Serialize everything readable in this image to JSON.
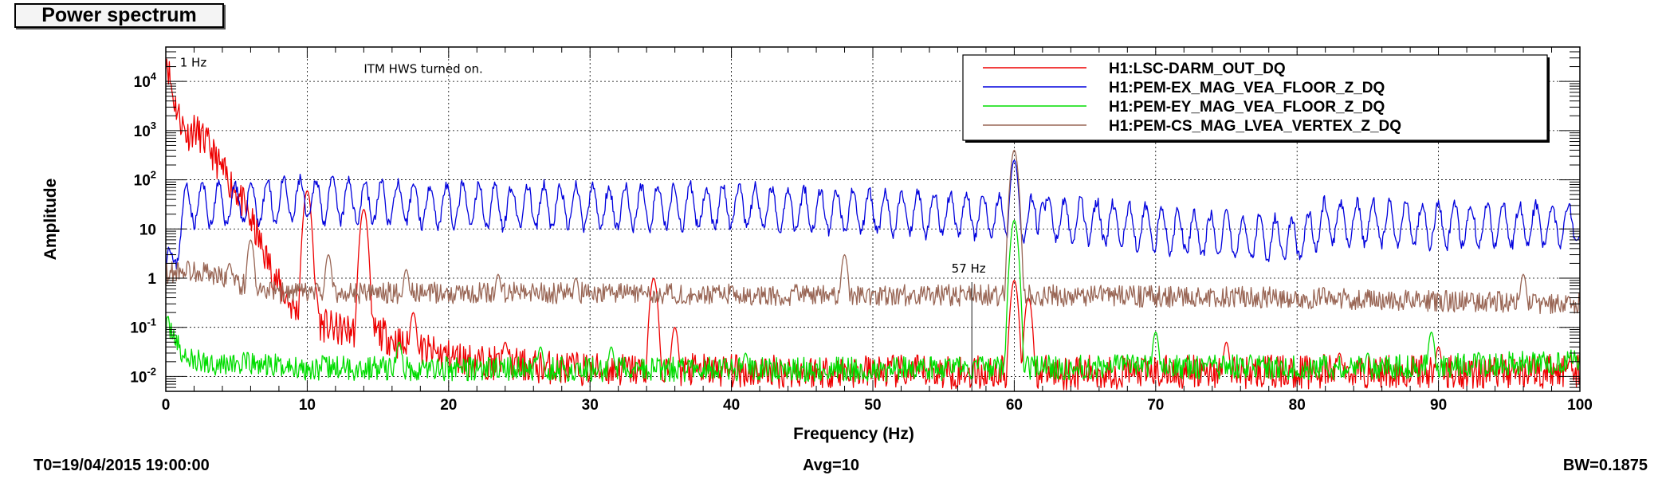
{
  "window": {
    "title": "Power spectrum"
  },
  "footer": {
    "t0": "T0=19/04/2015 19:00:00",
    "avg": "Avg=10",
    "bw": "BW=0.1875"
  },
  "colors": {
    "frame": "#000000",
    "grid": "#000000"
  },
  "chart_data": {
    "type": "line",
    "title": "Power spectrum",
    "xlabel": "Frequency (Hz)",
    "ylabel": "Amplitude",
    "xlim": [
      0,
      100
    ],
    "ylim": [
      0.005,
      50000
    ],
    "yscale": "log",
    "grid": true,
    "legend_placement": "top-right",
    "x_ticks": [
      0,
      10,
      20,
      30,
      40,
      50,
      60,
      70,
      80,
      90,
      100
    ],
    "y_ticks": [
      {
        "value": 10000,
        "base": "10",
        "exp": "4"
      },
      {
        "value": 1000,
        "base": "10",
        "exp": "3"
      },
      {
        "value": 100,
        "base": "10",
        "exp": "2"
      },
      {
        "value": 10,
        "base": "10",
        "exp": ""
      },
      {
        "value": 1,
        "base": "1",
        "exp": ""
      },
      {
        "value": 0.1,
        "base": "10",
        "exp": "-1"
      },
      {
        "value": 0.01,
        "base": "10",
        "exp": "-2"
      }
    ],
    "annotations": [
      {
        "text": "1 Hz",
        "x": 1,
        "y": 20000
      },
      {
        "text": "ITM HWS turned on.",
        "x": 14,
        "y": 15000
      },
      {
        "text": "57 Hz",
        "x": 57,
        "y": 1.3,
        "marker_x": 57
      }
    ],
    "series": [
      {
        "name": "H1:LSC-DARM_OUT_DQ",
        "color": "#ee0000",
        "base": 0.013,
        "noise": 0.35,
        "seed": 11,
        "points": [
          [
            0,
            40000
          ],
          [
            0.5,
            5000
          ],
          [
            1,
            1800
          ],
          [
            1.5,
            800
          ],
          [
            2,
            1100
          ],
          [
            3,
            500
          ],
          [
            4,
            150
          ],
          [
            5,
            60
          ],
          [
            6,
            15
          ],
          [
            7,
            3
          ],
          [
            8,
            0.7
          ],
          [
            9,
            0.25
          ],
          [
            10,
            0.15
          ],
          [
            12,
            0.09
          ],
          [
            15,
            0.08
          ],
          [
            17,
            0.04
          ],
          [
            19,
            0.03
          ],
          [
            22,
            0.02
          ],
          [
            26,
            0.016
          ],
          [
            30,
            0.014
          ],
          [
            40,
            0.013
          ],
          [
            60,
            0.012
          ],
          [
            100,
            0.013
          ]
        ],
        "peaks": [
          [
            10,
            60
          ],
          [
            10.5,
            0.8
          ],
          [
            14,
            25
          ],
          [
            17.5,
            0.2
          ],
          [
            24,
            0.05
          ],
          [
            34.5,
            1
          ],
          [
            36,
            0.1
          ],
          [
            61,
            0.4
          ],
          [
            60,
            0.9
          ],
          [
            75,
            0.05
          ],
          [
            83,
            0.03
          ],
          [
            90,
            0.04
          ]
        ]
      },
      {
        "name": "H1:PEM-EX_MAG_VEA_FLOOR_Z_DQ",
        "color": "#0000dd",
        "base": 30,
        "noise": 0.12,
        "seed": 23,
        "points": [
          [
            0,
            2
          ],
          [
            0.5,
            1.5
          ],
          [
            1,
            12
          ],
          [
            1.5,
            35
          ],
          [
            3,
            30
          ],
          [
            10,
            40
          ],
          [
            20,
            30
          ],
          [
            30,
            28
          ],
          [
            40,
            28
          ],
          [
            50,
            22
          ],
          [
            55,
            20
          ],
          [
            60,
            18
          ],
          [
            65,
            15
          ],
          [
            70,
            10
          ],
          [
            75,
            7
          ],
          [
            80,
            6
          ],
          [
            82,
            14
          ],
          [
            90,
            12
          ],
          [
            95,
            12
          ],
          [
            100,
            12
          ]
        ],
        "osc_amp": 0.85,
        "osc_period": 1.15,
        "peaks": [
          [
            60,
            250
          ],
          [
            62,
            35
          ],
          [
            75,
            25
          ]
        ]
      },
      {
        "name": "H1:PEM-EY_MAG_VEA_FLOOR_Z_DQ",
        "color": "#00dd00",
        "base": 0.016,
        "noise": 0.25,
        "seed": 37,
        "points": [
          [
            0,
            0.1
          ],
          [
            0.5,
            0.09
          ],
          [
            1,
            0.03
          ],
          [
            2,
            0.02
          ],
          [
            10,
            0.015
          ],
          [
            30,
            0.014
          ],
          [
            50,
            0.014
          ],
          [
            70,
            0.016
          ],
          [
            85,
            0.015
          ],
          [
            100,
            0.02
          ]
        ],
        "peaks": [
          [
            16.5,
            0.05
          ],
          [
            26.5,
            0.04
          ],
          [
            31.5,
            0.04
          ],
          [
            41,
            0.03
          ],
          [
            60,
            15
          ],
          [
            70,
            0.08
          ],
          [
            85,
            0.03
          ],
          [
            89.5,
            0.08
          ]
        ]
      },
      {
        "name": "H1:PEM-CS_MAG_LVEA_VERTEX_Z_DQ",
        "color": "#996655",
        "base": 0.4,
        "noise": 0.22,
        "seed": 53,
        "points": [
          [
            0,
            1.2
          ],
          [
            1,
            1.5
          ],
          [
            3,
            1.3
          ],
          [
            5,
            0.8
          ],
          [
            8,
            0.5
          ],
          [
            15,
            0.5
          ],
          [
            30,
            0.5
          ],
          [
            45,
            0.45
          ],
          [
            60,
            0.45
          ],
          [
            80,
            0.4
          ],
          [
            100,
            0.3
          ]
        ],
        "peaks": [
          [
            4.5,
            2
          ],
          [
            6,
            6
          ],
          [
            11.5,
            3
          ],
          [
            17,
            1.5
          ],
          [
            23.5,
            1.2
          ],
          [
            29,
            1
          ],
          [
            48,
            3
          ],
          [
            60,
            400
          ],
          [
            96,
            1.2
          ]
        ]
      }
    ]
  }
}
